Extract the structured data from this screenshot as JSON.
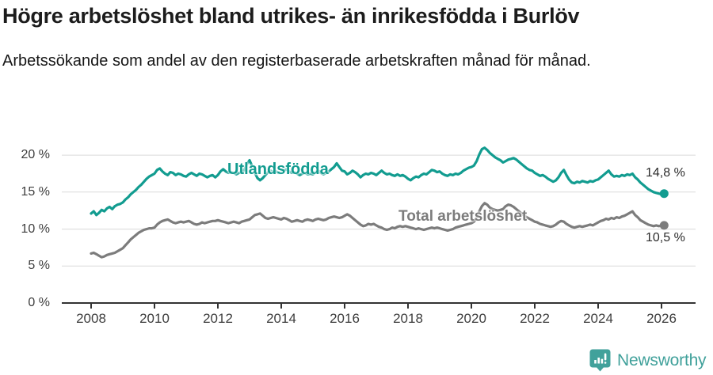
{
  "header": {
    "title": "Högre arbetslöshet bland utrikes- än inrikesfödda i Burlöv",
    "subtitle": "Arbetssökande som andel av den registerbaserade arbetskraften månad för månad."
  },
  "colors": {
    "foreign_born": "#129c90",
    "total": "#7c7c7c",
    "gridline": "#dadada",
    "axis": "#333333",
    "brand": "#41a19b",
    "title_text": "#1c1c1c"
  },
  "footer": {
    "brand": "Newsworthy",
    "logo_icon": "speech-bubble-bar-chart-icon"
  },
  "chart_data": {
    "type": "line",
    "title": "Högre arbetslöshet bland utrikes- än inrikesfödda i Burlöv",
    "subtitle": "Arbetssökande som andel av den registerbaserade arbetskraften månad för månad.",
    "grid": "horizontal",
    "x_axis": {
      "start_year": 2008,
      "start_month": 1,
      "months_per_point": 1,
      "ticks": [
        2008,
        2010,
        2012,
        2014,
        2016,
        2018,
        2020,
        2022,
        2024,
        2026
      ]
    },
    "y_axis": {
      "unit": "%",
      "ylim": [
        0,
        21.5
      ],
      "ticks": [
        {
          "label": "0 %",
          "value": 0
        },
        {
          "label": "5 %",
          "value": 5
        },
        {
          "label": "10 %",
          "value": 10
        },
        {
          "label": "15 %",
          "value": 15
        },
        {
          "label": "20 %",
          "value": 20
        }
      ]
    },
    "series": [
      {
        "name": "Utlandsfödda",
        "color": "#129c90",
        "end_label": "14,8 %",
        "end_value": 14.8,
        "values": [
          12.1,
          12.4,
          11.9,
          12.2,
          12.6,
          12.4,
          12.8,
          13.0,
          12.7,
          13.1,
          13.3,
          13.4,
          13.6,
          14.0,
          14.3,
          14.7,
          15.0,
          15.3,
          15.7,
          16.0,
          16.4,
          16.8,
          17.1,
          17.3,
          17.5,
          18.0,
          18.2,
          17.8,
          17.5,
          17.3,
          17.7,
          17.6,
          17.3,
          17.5,
          17.4,
          17.2,
          17.1,
          17.4,
          17.6,
          17.4,
          17.2,
          17.5,
          17.4,
          17.2,
          17.0,
          17.2,
          17.3,
          17.0,
          17.3,
          17.8,
          18.1,
          17.8,
          17.6,
          17.7,
          17.6,
          17.4,
          17.6,
          17.7,
          18.0,
          18.8,
          19.3,
          18.5,
          17.6,
          16.9,
          16.6,
          16.9,
          17.3,
          17.7,
          17.9,
          17.7,
          17.8,
          17.6,
          17.6,
          17.9,
          18.1,
          17.8,
          17.6,
          17.7,
          17.5,
          17.3,
          17.5,
          17.6,
          17.4,
          17.5,
          17.4,
          17.7,
          17.9,
          17.6,
          17.4,
          17.6,
          17.8,
          18.1,
          18.4,
          18.9,
          18.4,
          17.9,
          17.8,
          17.4,
          17.6,
          17.9,
          17.7,
          17.4,
          17.0,
          17.3,
          17.5,
          17.4,
          17.6,
          17.5,
          17.3,
          17.6,
          17.9,
          17.6,
          17.4,
          17.5,
          17.3,
          17.2,
          17.4,
          17.2,
          17.3,
          17.1,
          16.8,
          16.6,
          16.9,
          17.1,
          17.0,
          17.3,
          17.5,
          17.4,
          17.7,
          18.0,
          17.9,
          17.7,
          17.8,
          17.5,
          17.3,
          17.2,
          17.4,
          17.3,
          17.5,
          17.4,
          17.6,
          17.9,
          18.1,
          18.3,
          18.4,
          18.6,
          19.2,
          20.1,
          20.8,
          21.0,
          20.7,
          20.3,
          20.0,
          19.7,
          19.5,
          19.3,
          19.0,
          19.2,
          19.4,
          19.5,
          19.6,
          19.4,
          19.1,
          18.8,
          18.5,
          18.2,
          18.0,
          17.9,
          17.6,
          17.4,
          17.2,
          17.3,
          17.1,
          16.8,
          16.6,
          16.4,
          16.6,
          17.0,
          17.6,
          18.0,
          17.3,
          16.7,
          16.3,
          16.2,
          16.4,
          16.3,
          16.5,
          16.4,
          16.3,
          16.5,
          16.4,
          16.6,
          16.7,
          17.0,
          17.3,
          17.6,
          17.9,
          17.4,
          17.1,
          17.2,
          17.1,
          17.3,
          17.2,
          17.4,
          17.3,
          17.5,
          17.0,
          16.7,
          16.3,
          16.0,
          15.7,
          15.4,
          15.2,
          15.0,
          14.9,
          14.8,
          14.7,
          14.8
        ]
      },
      {
        "name": "Total arbetslöshet",
        "color": "#7c7c7c",
        "end_label": "10,5 %",
        "end_value": 10.5,
        "values": [
          6.7,
          6.8,
          6.6,
          6.4,
          6.2,
          6.3,
          6.5,
          6.6,
          6.7,
          6.8,
          7.0,
          7.2,
          7.4,
          7.8,
          8.2,
          8.6,
          8.9,
          9.2,
          9.5,
          9.7,
          9.9,
          10.0,
          10.1,
          10.1,
          10.2,
          10.6,
          10.9,
          11.1,
          11.2,
          11.3,
          11.1,
          10.9,
          10.8,
          10.9,
          11.0,
          10.9,
          11.0,
          11.1,
          10.9,
          10.7,
          10.6,
          10.7,
          10.9,
          10.8,
          10.9,
          11.0,
          11.1,
          11.1,
          11.2,
          11.1,
          11.0,
          10.9,
          10.8,
          10.9,
          11.0,
          10.9,
          10.8,
          11.0,
          11.1,
          11.2,
          11.3,
          11.6,
          11.9,
          12.0,
          12.1,
          11.8,
          11.5,
          11.4,
          11.5,
          11.6,
          11.5,
          11.4,
          11.3,
          11.5,
          11.4,
          11.2,
          11.0,
          11.1,
          11.2,
          11.1,
          11.0,
          11.2,
          11.3,
          11.2,
          11.1,
          11.3,
          11.4,
          11.3,
          11.2,
          11.3,
          11.5,
          11.6,
          11.7,
          11.6,
          11.5,
          11.6,
          11.8,
          12.0,
          11.8,
          11.5,
          11.2,
          10.9,
          10.6,
          10.4,
          10.5,
          10.7,
          10.6,
          10.7,
          10.5,
          10.3,
          10.2,
          10.0,
          9.9,
          10.0,
          10.2,
          10.1,
          10.3,
          10.4,
          10.3,
          10.4,
          10.3,
          10.2,
          10.1,
          10.0,
          10.1,
          10.0,
          9.9,
          10.0,
          10.1,
          10.2,
          10.1,
          10.2,
          10.1,
          10.0,
          9.9,
          9.8,
          9.9,
          10.0,
          10.2,
          10.3,
          10.4,
          10.5,
          10.6,
          10.7,
          10.8,
          11.0,
          11.5,
          12.4,
          13.1,
          13.5,
          13.3,
          12.9,
          12.7,
          12.6,
          12.5,
          12.6,
          12.7,
          13.1,
          13.3,
          13.2,
          13.0,
          12.7,
          12.4,
          12.1,
          11.8,
          11.6,
          11.4,
          11.2,
          11.0,
          10.9,
          10.7,
          10.6,
          10.5,
          10.4,
          10.3,
          10.4,
          10.6,
          10.9,
          11.1,
          11.0,
          10.7,
          10.5,
          10.3,
          10.2,
          10.3,
          10.4,
          10.3,
          10.4,
          10.5,
          10.6,
          10.5,
          10.7,
          10.9,
          11.1,
          11.2,
          11.4,
          11.3,
          11.5,
          11.4,
          11.6,
          11.5,
          11.7,
          11.8,
          12.0,
          12.2,
          12.4,
          11.9,
          11.6,
          11.2,
          11.0,
          10.8,
          10.6,
          10.5,
          10.4,
          10.5,
          10.4,
          10.5,
          10.5
        ]
      }
    ]
  }
}
